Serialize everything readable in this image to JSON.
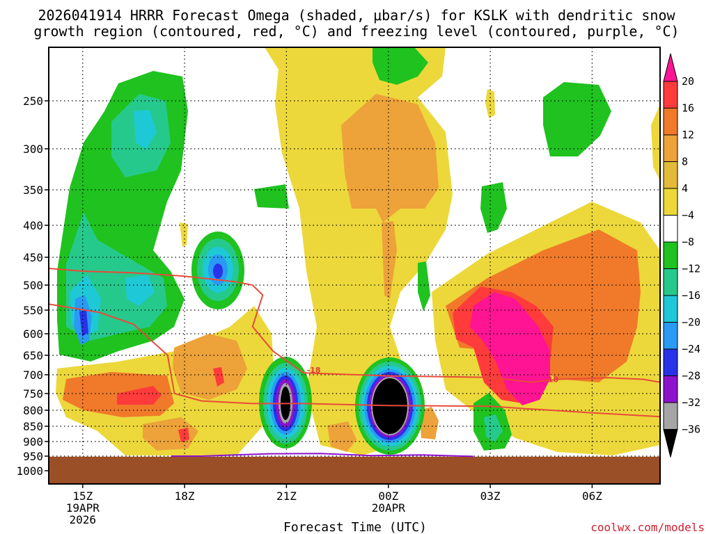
{
  "chart_data": {
    "type": "heatmap",
    "title_line1": "2026041914 HRRR Forecast Omega (shaded, μbar/s) for KSLK with dendritic snow",
    "title_line2": "growth region (contoured, red, °C) and freezing level (contoured, purple, °C)",
    "xlabel": "Forecast Time (UTC)",
    "ylabel": "",
    "credit": "coolwx.com/models",
    "x_ticks": [
      {
        "hour": 15,
        "label": "15Z",
        "sub1": "19APR",
        "sub2": "2026"
      },
      {
        "hour": 18,
        "label": "18Z",
        "sub1": "",
        "sub2": ""
      },
      {
        "hour": 21,
        "label": "21Z",
        "sub1": "",
        "sub2": ""
      },
      {
        "hour": 24,
        "label": "00Z",
        "sub1": "20APR",
        "sub2": ""
      },
      {
        "hour": 27,
        "label": "03Z",
        "sub1": "",
        "sub2": ""
      },
      {
        "hour": 30,
        "label": "06Z",
        "sub1": "",
        "sub2": ""
      }
    ],
    "xlim": [
      14,
      32
    ],
    "y_ticks": [
      "250",
      "300",
      "350",
      "400",
      "450",
      "500",
      "550",
      "600",
      "650",
      "700",
      "750",
      "800",
      "850",
      "900",
      "950",
      "1000"
    ],
    "y_tick_values": [
      250,
      300,
      350,
      400,
      450,
      500,
      550,
      600,
      650,
      700,
      750,
      800,
      850,
      900,
      950,
      1000
    ],
    "ylim_hpa": [
      200,
      1025
    ],
    "surface_pressure_hpa": 952,
    "colorbar": {
      "labels": [
        "20",
        "16",
        "12",
        "8",
        "4",
        "−4",
        "−8",
        "−12",
        "−16",
        "−20",
        "−24",
        "−28",
        "−32",
        "−36"
      ],
      "colors": [
        "#ff1493",
        "#ff3b3b",
        "#f07a2a",
        "#eda23a",
        "#e3ba3a",
        "#ecd83a",
        "#ffffff",
        "#1fc21f",
        "#26c98c",
        "#1ec8d6",
        "#2a9af5",
        "#2832e8",
        "#8d12cc",
        "#a5a5a5",
        "#000000"
      ]
    },
    "omega_levels_ubar_s": [
      -36,
      -32,
      -28,
      -24,
      -20,
      -16,
      -12,
      -8,
      -4,
      4,
      8,
      12,
      16,
      20
    ],
    "dgz_contour_label": "-18",
    "dgz_contours": [
      {
        "name": "dgz-upper",
        "points": [
          [
            14.0,
            470
          ],
          [
            15.0,
            475
          ],
          [
            16.5,
            478
          ],
          [
            18.0,
            484
          ],
          [
            19.5,
            494
          ],
          [
            20.0,
            500
          ],
          [
            20.3,
            520
          ],
          [
            20.0,
            585
          ],
          [
            20.6,
            640
          ],
          [
            21.5,
            695
          ],
          [
            24.0,
            703
          ],
          [
            27.0,
            707
          ],
          [
            28.2,
            720
          ],
          [
            29.0,
            712
          ],
          [
            30.5,
            708
          ],
          [
            31.5,
            712
          ],
          [
            32.0,
            720
          ]
        ]
      },
      {
        "name": "dgz-lower",
        "points": [
          [
            14.0,
            538
          ],
          [
            15.5,
            555
          ],
          [
            16.5,
            580
          ],
          [
            17.5,
            650
          ],
          [
            17.7,
            750
          ],
          [
            18.5,
            772
          ],
          [
            20.0,
            780
          ],
          [
            21.5,
            780
          ],
          [
            24.0,
            786
          ],
          [
            27.0,
            788
          ],
          [
            28.0,
            795
          ],
          [
            30.0,
            808
          ],
          [
            32.0,
            820
          ]
        ]
      }
    ],
    "freezing_level": {
      "name": "freezing-level-0C",
      "points": [
        [
          17.6,
          950
        ],
        [
          18.5,
          950
        ],
        [
          20.5,
          942
        ],
        [
          22.0,
          941
        ],
        [
          23.5,
          948
        ],
        [
          25.0,
          946
        ],
        [
          26.5,
          951
        ]
      ]
    }
  }
}
